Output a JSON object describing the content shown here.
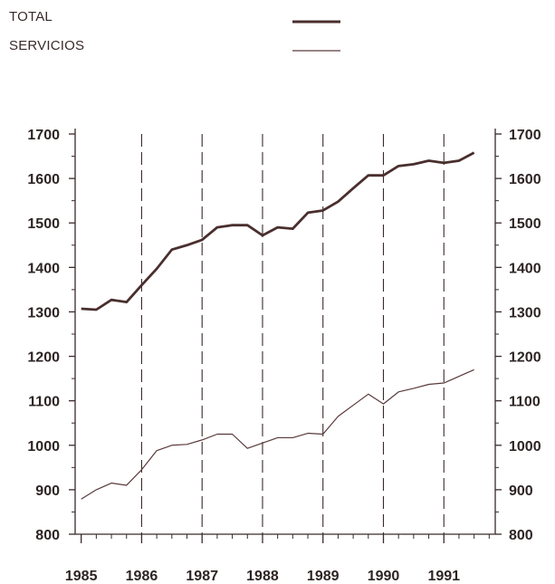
{
  "legend": {
    "total_label": "TOTAL",
    "servicios_label": "SERVICIOS"
  },
  "chart_data": {
    "type": "line",
    "title": "",
    "xlabel": "",
    "ylabel": "",
    "ylim": [
      800,
      1700
    ],
    "y_ticks": [
      800,
      900,
      1000,
      1100,
      1200,
      1300,
      1400,
      1500,
      1600,
      1700
    ],
    "x_tick_labels": [
      "1985",
      "1986",
      "1987",
      "1988",
      "1989",
      "1990",
      "1991"
    ],
    "secondary_y_axis": true,
    "grid": "vertical dashed lines at year boundaries",
    "legend_position": "top",
    "colors": {
      "total": "#4a2e2e",
      "servicios": "#5a3a3a",
      "axis": "#3a2a2a"
    },
    "x": [
      1985.0,
      1985.25,
      1985.5,
      1985.75,
      1986.0,
      1986.25,
      1986.5,
      1986.75,
      1987.0,
      1987.25,
      1987.5,
      1987.75,
      1988.0,
      1988.25,
      1988.5,
      1988.75,
      1989.0,
      1989.25,
      1989.5,
      1989.75,
      1990.0,
      1990.25,
      1990.5,
      1990.75,
      1991.0,
      1991.25,
      1991.5
    ],
    "series": [
      {
        "name": "TOTAL",
        "values": [
          1307,
          1305,
          1327,
          1322,
          1360,
          1397,
          1440,
          1450,
          1462,
          1490,
          1495,
          1495,
          1472,
          1490,
          1487,
          1523,
          1528,
          1548,
          1578,
          1607,
          1607,
          1628,
          1632,
          1640,
          1635,
          1640,
          1658
        ]
      },
      {
        "name": "SERVICIOS",
        "values": [
          879,
          900,
          915,
          910,
          945,
          988,
          1000,
          1002,
          1012,
          1025,
          1025,
          993,
          1005,
          1017,
          1017,
          1027,
          1025,
          1065,
          1090,
          1115,
          1093,
          1120,
          1128,
          1137,
          1140,
          1155,
          1170
        ]
      }
    ]
  }
}
